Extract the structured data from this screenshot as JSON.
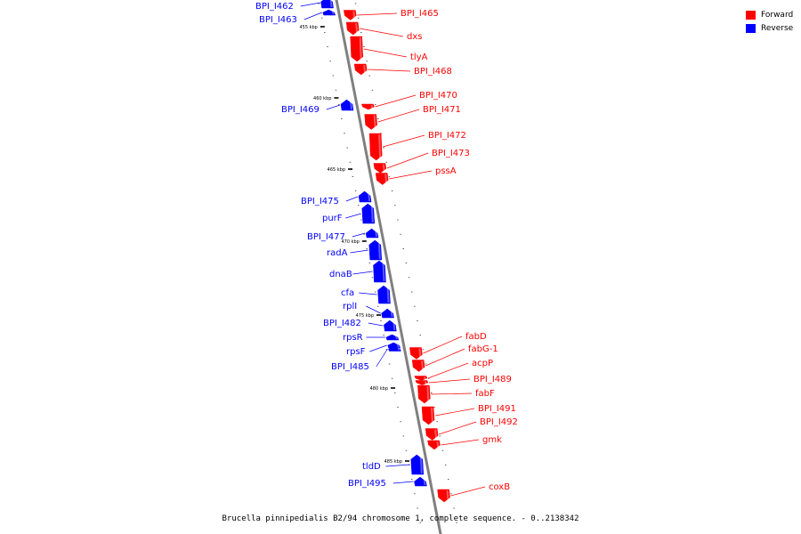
{
  "legend": [
    {
      "label": "Forward",
      "color": "#ff0000"
    },
    {
      "label": "Reverse",
      "color": "#0000ff"
    }
  ],
  "caption": "Brucella pinnipedialis B2/94 chromosome 1, complete sequence. - 0..2138342",
  "colors": {
    "forward": "#ff0000",
    "reverse": "#0000ff",
    "backbone": "#808080"
  },
  "ticks": [
    "455 kbp",
    "460 kbp",
    "465 kbp",
    "470 kbp",
    "475 kbp",
    "480 kbp",
    "485 kbp"
  ],
  "genes": [
    {
      "name": "BPI_I462",
      "strand": "reverse"
    },
    {
      "name": "BPI_I463",
      "strand": "reverse"
    },
    {
      "name": "BPI_I465",
      "strand": "forward"
    },
    {
      "name": "dxs",
      "strand": "forward"
    },
    {
      "name": "tlyA",
      "strand": "forward"
    },
    {
      "name": "BPI_I468",
      "strand": "forward"
    },
    {
      "name": "BPI_I469",
      "strand": "reverse"
    },
    {
      "name": "BPI_I470",
      "strand": "forward"
    },
    {
      "name": "BPI_I471",
      "strand": "forward"
    },
    {
      "name": "BPI_I472",
      "strand": "forward"
    },
    {
      "name": "BPI_I473",
      "strand": "forward"
    },
    {
      "name": "pssA",
      "strand": "forward"
    },
    {
      "name": "BPI_I475",
      "strand": "reverse"
    },
    {
      "name": "purF",
      "strand": "reverse"
    },
    {
      "name": "BPI_I477",
      "strand": "reverse"
    },
    {
      "name": "radA",
      "strand": "reverse"
    },
    {
      "name": "dnaB",
      "strand": "reverse"
    },
    {
      "name": "cfa",
      "strand": "reverse"
    },
    {
      "name": "rplI",
      "strand": "reverse"
    },
    {
      "name": "BPI_I482",
      "strand": "reverse"
    },
    {
      "name": "rpsR",
      "strand": "reverse"
    },
    {
      "name": "rpsF",
      "strand": "reverse"
    },
    {
      "name": "BPI_I485",
      "strand": "reverse"
    },
    {
      "name": "fabD",
      "strand": "forward"
    },
    {
      "name": "fabG-1",
      "strand": "forward"
    },
    {
      "name": "acpP",
      "strand": "forward"
    },
    {
      "name": "BPI_I489",
      "strand": "forward"
    },
    {
      "name": "fabF",
      "strand": "forward"
    },
    {
      "name": "BPI_I491",
      "strand": "forward"
    },
    {
      "name": "BPI_I492",
      "strand": "forward"
    },
    {
      "name": "gmk",
      "strand": "forward"
    },
    {
      "name": "tldD",
      "strand": "reverse"
    },
    {
      "name": "BPI_I495",
      "strand": "reverse"
    },
    {
      "name": "coxB",
      "strand": "forward"
    }
  ]
}
